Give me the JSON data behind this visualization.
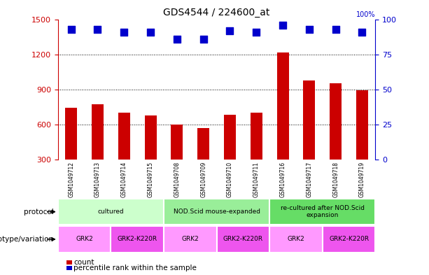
{
  "title": "GDS4544 / 224600_at",
  "samples": [
    "GSM1049712",
    "GSM1049713",
    "GSM1049714",
    "GSM1049715",
    "GSM1049708",
    "GSM1049709",
    "GSM1049710",
    "GSM1049711",
    "GSM1049716",
    "GSM1049717",
    "GSM1049718",
    "GSM1049719"
  ],
  "bar_values": [
    745,
    775,
    700,
    675,
    600,
    570,
    685,
    700,
    1215,
    975,
    955,
    895
  ],
  "percentile_values": [
    93,
    93,
    91,
    91,
    86,
    86,
    92,
    91,
    96,
    93,
    93,
    91
  ],
  "bar_color": "#cc0000",
  "dot_color": "#0000cc",
  "ymin": 300,
  "ymax": 1500,
  "yticks_left": [
    300,
    600,
    900,
    1200,
    1500
  ],
  "yticks_right": [
    0,
    25,
    50,
    75,
    100
  ],
  "grid_values": [
    600,
    900,
    1200
  ],
  "protocol_groups": [
    {
      "label": "cultured",
      "start": 0,
      "end": 3,
      "color": "#ccffcc"
    },
    {
      "label": "NOD.Scid mouse-expanded",
      "start": 4,
      "end": 7,
      "color": "#99ee99"
    },
    {
      "label": "re-cultured after NOD.Scid\nexpansion",
      "start": 8,
      "end": 11,
      "color": "#66dd66"
    }
  ],
  "genotype_groups": [
    {
      "label": "GRK2",
      "start": 0,
      "end": 1,
      "color": "#ff99ff"
    },
    {
      "label": "GRK2-K220R",
      "start": 2,
      "end": 3,
      "color": "#ee55ee"
    },
    {
      "label": "GRK2",
      "start": 4,
      "end": 5,
      "color": "#ff99ff"
    },
    {
      "label": "GRK2-K220R",
      "start": 6,
      "end": 7,
      "color": "#ee55ee"
    },
    {
      "label": "GRK2",
      "start": 8,
      "end": 9,
      "color": "#ff99ff"
    },
    {
      "label": "GRK2-K220R",
      "start": 10,
      "end": 11,
      "color": "#ee55ee"
    }
  ],
  "protocol_label": "protocol",
  "genotype_label": "genotype/variation",
  "legend_count": "count",
  "legend_percentile": "percentile rank within the sample",
  "background_color": "#ffffff",
  "bar_width": 0.45,
  "dot_size": 55,
  "title_fontsize": 10
}
